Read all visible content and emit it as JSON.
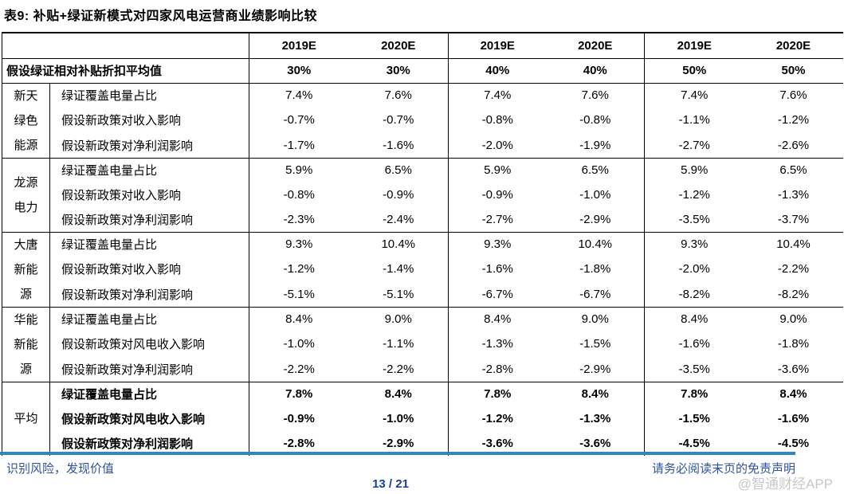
{
  "title": "表9:  补贴+绿证新模式对四家风电运营商业绩影响比较",
  "table": {
    "year_headers": [
      "2019E",
      "2020E",
      "2019E",
      "2020E",
      "2019E",
      "2020E"
    ],
    "discount_row": {
      "label": "假设绿证相对补贴折扣平均值",
      "values": [
        "30%",
        "30%",
        "40%",
        "40%",
        "50%",
        "50%"
      ]
    },
    "groups": [
      {
        "name": "新天\n绿色\n能源",
        "bold": false,
        "rows": [
          {
            "metric": "绿证覆盖电量占比",
            "values": [
              "7.4%",
              "7.6%",
              "7.4%",
              "7.6%",
              "7.4%",
              "7.6%"
            ]
          },
          {
            "metric": "假设新政策对收入影响",
            "values": [
              "-0.7%",
              "-0.7%",
              "-0.8%",
              "-0.8%",
              "-1.1%",
              "-1.2%"
            ]
          },
          {
            "metric": "假设新政策对净利润影响",
            "values": [
              "-1.7%",
              "-1.6%",
              "-2.0%",
              "-1.9%",
              "-2.7%",
              "-2.6%"
            ]
          }
        ]
      },
      {
        "name": "龙源\n电力",
        "bold": false,
        "rows": [
          {
            "metric": "绿证覆盖电量占比",
            "values": [
              "5.9%",
              "6.5%",
              "5.9%",
              "6.5%",
              "5.9%",
              "6.5%"
            ]
          },
          {
            "metric": "假设新政策对收入影响",
            "values": [
              "-0.8%",
              "-0.9%",
              "-0.9%",
              "-1.0%",
              "-1.2%",
              "-1.3%"
            ]
          },
          {
            "metric": "假设新政策对净利润影响",
            "values": [
              "-2.3%",
              "-2.4%",
              "-2.7%",
              "-2.9%",
              "-3.5%",
              "-3.7%"
            ]
          }
        ]
      },
      {
        "name": "大唐\n新能\n源",
        "bold": false,
        "rows": [
          {
            "metric": "绿证覆盖电量占比",
            "values": [
              "9.3%",
              "10.4%",
              "9.3%",
              "10.4%",
              "9.3%",
              "10.4%"
            ]
          },
          {
            "metric": "假设新政策对收入影响",
            "values": [
              "-1.2%",
              "-1.4%",
              "-1.6%",
              "-1.8%",
              "-2.0%",
              "-2.2%"
            ]
          },
          {
            "metric": "假设新政策对净利润影响",
            "values": [
              "-5.1%",
              "-5.1%",
              "-6.7%",
              "-6.7%",
              "-8.2%",
              "-8.2%"
            ]
          }
        ]
      },
      {
        "name": "华能\n新能\n源",
        "bold": false,
        "rows": [
          {
            "metric": "绿证覆盖电量占比",
            "values": [
              "8.4%",
              "9.0%",
              "8.4%",
              "9.0%",
              "8.4%",
              "9.0%"
            ]
          },
          {
            "metric": "假设新政策对风电收入影响",
            "values": [
              "-1.0%",
              "-1.1%",
              "-1.3%",
              "-1.5%",
              "-1.6%",
              "-1.8%"
            ]
          },
          {
            "metric": "假设新政策对净利润影响",
            "values": [
              "-2.2%",
              "-2.2%",
              "-2.8%",
              "-2.9%",
              "-3.5%",
              "-3.6%"
            ]
          }
        ]
      },
      {
        "name": "平均",
        "bold": true,
        "rows": [
          {
            "metric": "绿证覆盖电量占比",
            "values": [
              "7.8%",
              "8.4%",
              "7.8%",
              "8.4%",
              "7.8%",
              "8.4%"
            ]
          },
          {
            "metric": "假设新政策对风电收入影响",
            "values": [
              "-0.9%",
              "-1.0%",
              "-1.2%",
              "-1.3%",
              "-1.5%",
              "-1.6%"
            ]
          },
          {
            "metric": "假设新政策对净利润影响",
            "values": [
              "-2.8%",
              "-2.9%",
              "-3.6%",
              "-3.6%",
              "-4.5%",
              "-4.5%"
            ]
          }
        ]
      }
    ]
  },
  "footer": {
    "left": "识别风险，发现价值",
    "right": "请务必阅读末页的免责声明",
    "page": "13 / 21",
    "watermark": "@智通财经APP"
  },
  "colors": {
    "divider_blue": "#2e86c4",
    "footer_blue": "#2f53a0",
    "page_num_blue": "#1b4090",
    "watermark_gray": "#c8c8c8"
  }
}
